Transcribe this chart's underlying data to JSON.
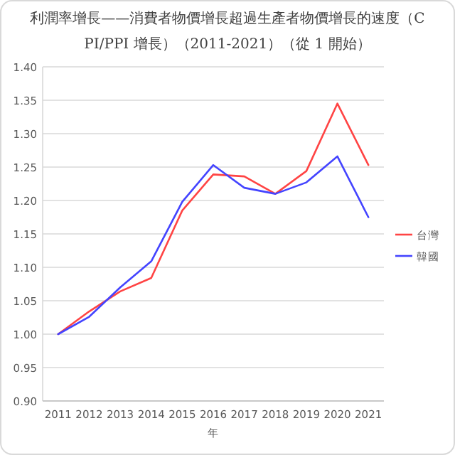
{
  "chart_data": {
    "type": "line",
    "title": "利潤率增長——消費者物價增長超過生產者物價增長的速度（CPI/PPI 增長）（2011-2021）（從 1 開始）",
    "xlabel": "年",
    "categories": [
      "2011",
      "2012",
      "2013",
      "2014",
      "2015",
      "2016",
      "2017",
      "2018",
      "2019",
      "2020",
      "2021"
    ],
    "series": [
      {
        "name": "台灣",
        "color": "#ff4444",
        "values": [
          1.0,
          1.034,
          1.064,
          1.084,
          1.185,
          1.239,
          1.236,
          1.21,
          1.244,
          1.345,
          1.253
        ]
      },
      {
        "name": "韓國",
        "color": "#4444ff",
        "values": [
          1.0,
          1.026,
          1.07,
          1.109,
          1.198,
          1.253,
          1.219,
          1.21,
          1.227,
          1.266,
          1.175
        ]
      }
    ],
    "ylim": [
      0.9,
      1.4
    ],
    "yticks": [
      {
        "value": 0.9,
        "label": "0.90"
      },
      {
        "value": 0.95,
        "label": "0.95"
      },
      {
        "value": 1.0,
        "label": "1.00"
      },
      {
        "value": 1.05,
        "label": "1.05"
      },
      {
        "value": 1.1,
        "label": "1.10"
      },
      {
        "value": 1.15,
        "label": "1.15"
      },
      {
        "value": 1.2,
        "label": "1.20"
      },
      {
        "value": 1.25,
        "label": "1.25"
      },
      {
        "value": 1.3,
        "label": "1.30"
      },
      {
        "value": 1.35,
        "label": "1.35"
      },
      {
        "value": 1.4,
        "label": "1.40"
      }
    ],
    "grid": "y",
    "legend": "right"
  }
}
